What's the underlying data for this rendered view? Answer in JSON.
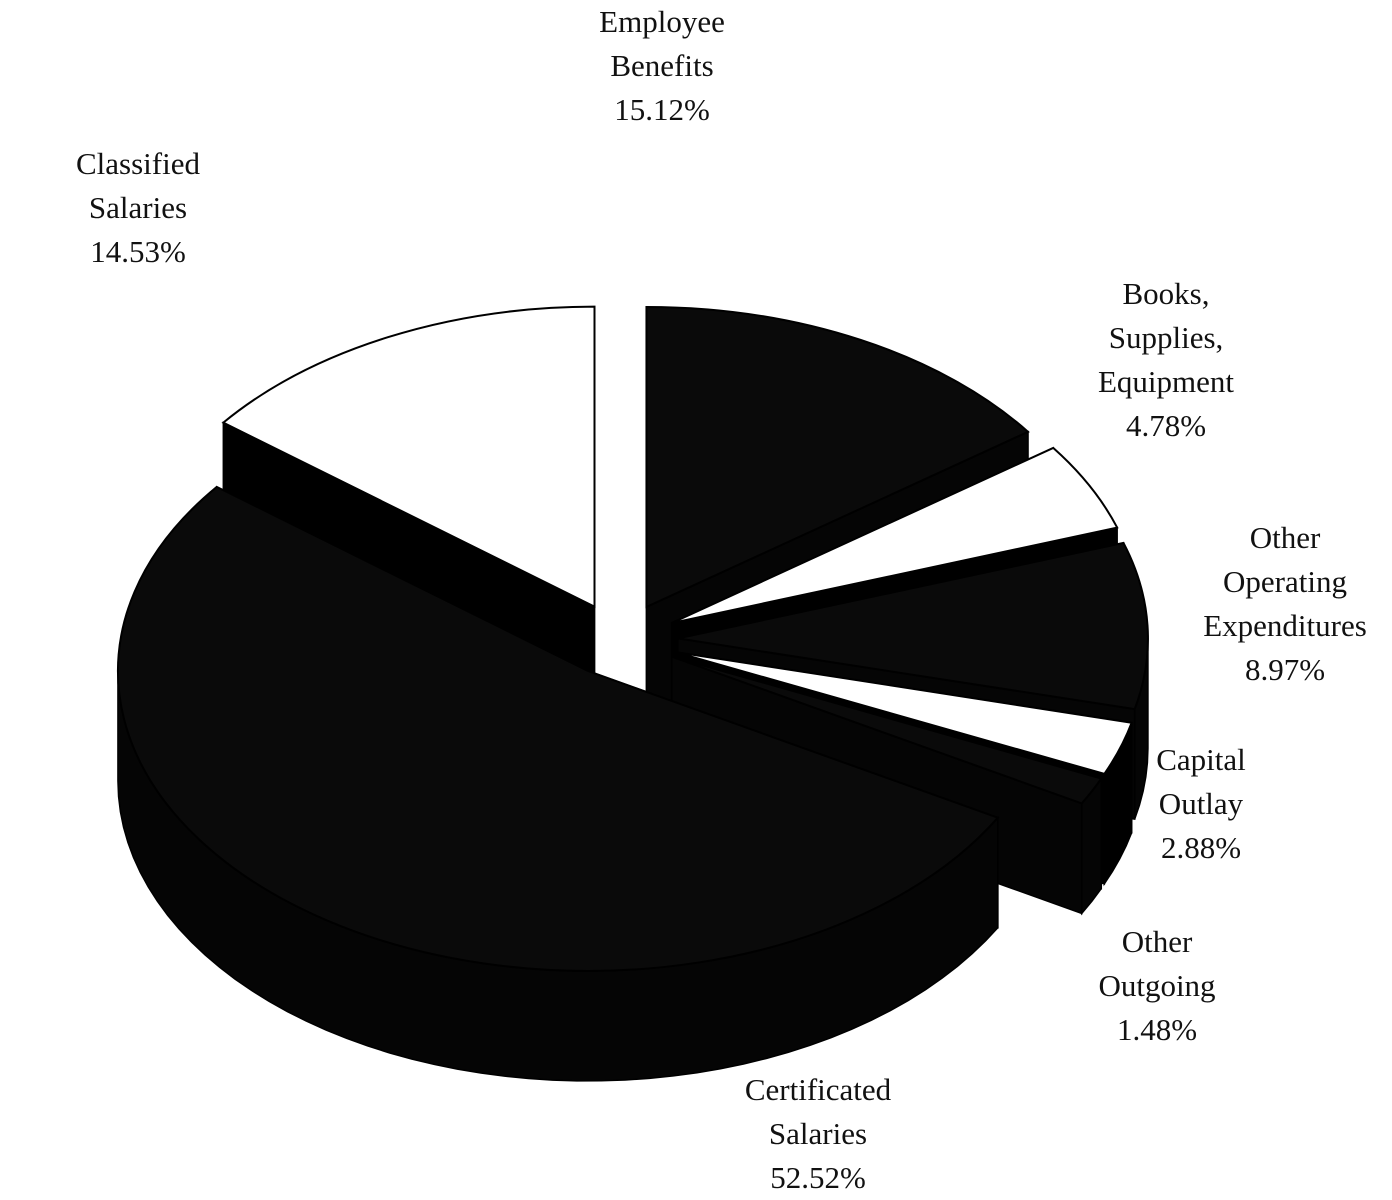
{
  "chart_data": {
    "type": "pie",
    "title": "",
    "style": "3d exploded pie",
    "colors": {
      "dark": "#0a0a0a",
      "light": "#ffffff",
      "edge": "#000000"
    },
    "slices": [
      {
        "lines": [
          "Employee",
          "Benefits"
        ],
        "value_label": "15.12%",
        "value": 15.12,
        "fill": "dark"
      },
      {
        "lines": [
          "Books,",
          "Supplies,",
          "Equipment"
        ],
        "value_label": "4.78%",
        "value": 4.78,
        "fill": "light"
      },
      {
        "lines": [
          "Other",
          "Operating",
          "Expenditures"
        ],
        "value_label": "8.97%",
        "value": 8.97,
        "fill": "dark"
      },
      {
        "lines": [
          "Capital",
          "Outlay"
        ],
        "value_label": "2.88%",
        "value": 2.88,
        "fill": "light"
      },
      {
        "lines": [
          "Other",
          "Outgoing"
        ],
        "value_label": "1.48%",
        "value": 1.48,
        "fill": "dark"
      },
      {
        "lines": [
          "Certificated",
          "Salaries"
        ],
        "value_label": "52.52%",
        "value": 52.52,
        "fill": "dark"
      },
      {
        "lines": [
          "Classified",
          "Salaries"
        ],
        "value_label": "14.53%",
        "value": 14.53,
        "fill": "light"
      }
    ]
  }
}
